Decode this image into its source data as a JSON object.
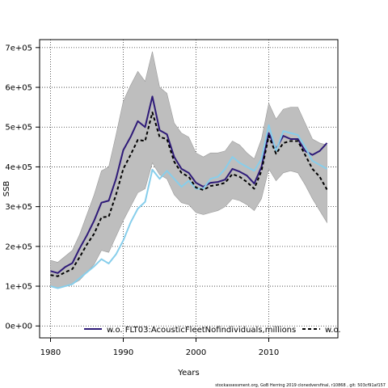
{
  "chart_data": {
    "type": "line",
    "xlabel": "Years",
    "ylabel": "SSB",
    "xlim": [
      1978.5,
      2019.5
    ],
    "ylim": [
      -30000,
      720000
    ],
    "x_ticks": [
      1980,
      1990,
      2000,
      2010
    ],
    "y_ticks": [
      0,
      100000,
      200000,
      300000,
      400000,
      500000,
      600000,
      700000
    ],
    "y_tick_labels": [
      "0e+00",
      "1e+05",
      "2e+05",
      "3e+05",
      "4e+05",
      "5e+05",
      "6e+05",
      "7e+05"
    ],
    "grid": true,
    "legend_position": "bottom",
    "x": [
      1980,
      1981,
      1982,
      1983,
      1984,
      1985,
      1986,
      1987,
      1988,
      1989,
      1990,
      1991,
      1992,
      1993,
      1994,
      1995,
      1996,
      1997,
      1998,
      1999,
      2000,
      2001,
      2002,
      2003,
      2004,
      2005,
      2006,
      2007,
      2008,
      2009,
      2010,
      2011,
      2012,
      2013,
      2014,
      2015,
      2016,
      2017,
      2018
    ],
    "band": {
      "color": "#bebebe",
      "upper": [
        165000,
        160000,
        175000,
        190000,
        230000,
        280000,
        330000,
        390000,
        400000,
        480000,
        565000,
        605000,
        640000,
        615000,
        690000,
        600000,
        585000,
        510000,
        485000,
        475000,
        435000,
        425000,
        435000,
        435000,
        440000,
        465000,
        455000,
        435000,
        420000,
        470000,
        560000,
        520000,
        545000,
        550000,
        550000,
        510000,
        470000,
        460000,
        455000
      ],
      "lower": [
        100000,
        95000,
        100000,
        105000,
        115000,
        135000,
        155000,
        190000,
        185000,
        225000,
        265000,
        300000,
        335000,
        345000,
        410000,
        380000,
        370000,
        330000,
        310000,
        305000,
        285000,
        280000,
        285000,
        290000,
        300000,
        320000,
        315000,
        305000,
        290000,
        320000,
        395000,
        365000,
        385000,
        390000,
        385000,
        355000,
        320000,
        290000,
        260000
      ]
    },
    "series": [
      {
        "name": "w.o. FLT03:AcousticFleetNofindividuals,millions",
        "color": "#2e1a78",
        "dash": "solid",
        "values": [
          138000,
          133000,
          148000,
          158000,
          195000,
          228000,
          265000,
          310000,
          315000,
          370000,
          442000,
          475000,
          515000,
          500000,
          577000,
          492000,
          482000,
          425000,
          395000,
          385000,
          360000,
          350000,
          360000,
          362000,
          368000,
          395000,
          388000,
          378000,
          358000,
          400000,
          485000,
          445000,
          478000,
          470000,
          470000,
          440000,
          430000,
          440000,
          460000
        ]
      },
      {
        "name": "w.o.",
        "color": "#87ceeb",
        "dash": "solid",
        "values": [
          100000,
          95000,
          100000,
          105000,
          120000,
          135000,
          150000,
          168000,
          157000,
          180000,
          215000,
          260000,
          295000,
          312000,
          393000,
          370000,
          390000,
          370000,
          350000,
          365000,
          345000,
          345000,
          370000,
          375000,
          395000,
          425000,
          410000,
          400000,
          390000,
          420000,
          505000,
          440000,
          490000,
          485000,
          480000,
          450000,
          415000,
          405000,
          395000
        ]
      },
      {
        "name": "",
        "color": "#000000",
        "dash": "dashed",
        "values": [
          128000,
          125000,
          135000,
          143000,
          173000,
          205000,
          232000,
          273000,
          275000,
          330000,
          395000,
          430000,
          468000,
          465000,
          537000,
          475000,
          470000,
          413000,
          385000,
          375000,
          348000,
          342000,
          352000,
          355000,
          360000,
          382000,
          375000,
          362000,
          345000,
          390000,
          478000,
          433000,
          460000,
          465000,
          465000,
          430000,
          395000,
          375000,
          343000
        ]
      }
    ]
  },
  "legend": {
    "entries": [
      {
        "label": "w.o. FLT03:AcousticFleetNofindividuals,millions",
        "color": "#2e1a78",
        "dash": "solid"
      },
      {
        "label": "w.o.",
        "color": "#000000",
        "dash": "dashed"
      }
    ]
  },
  "footer": {
    "text": "stockassessment.org, GoB Herring 2019 clonedversfinal, r10868 , git: 503cf91af157"
  }
}
